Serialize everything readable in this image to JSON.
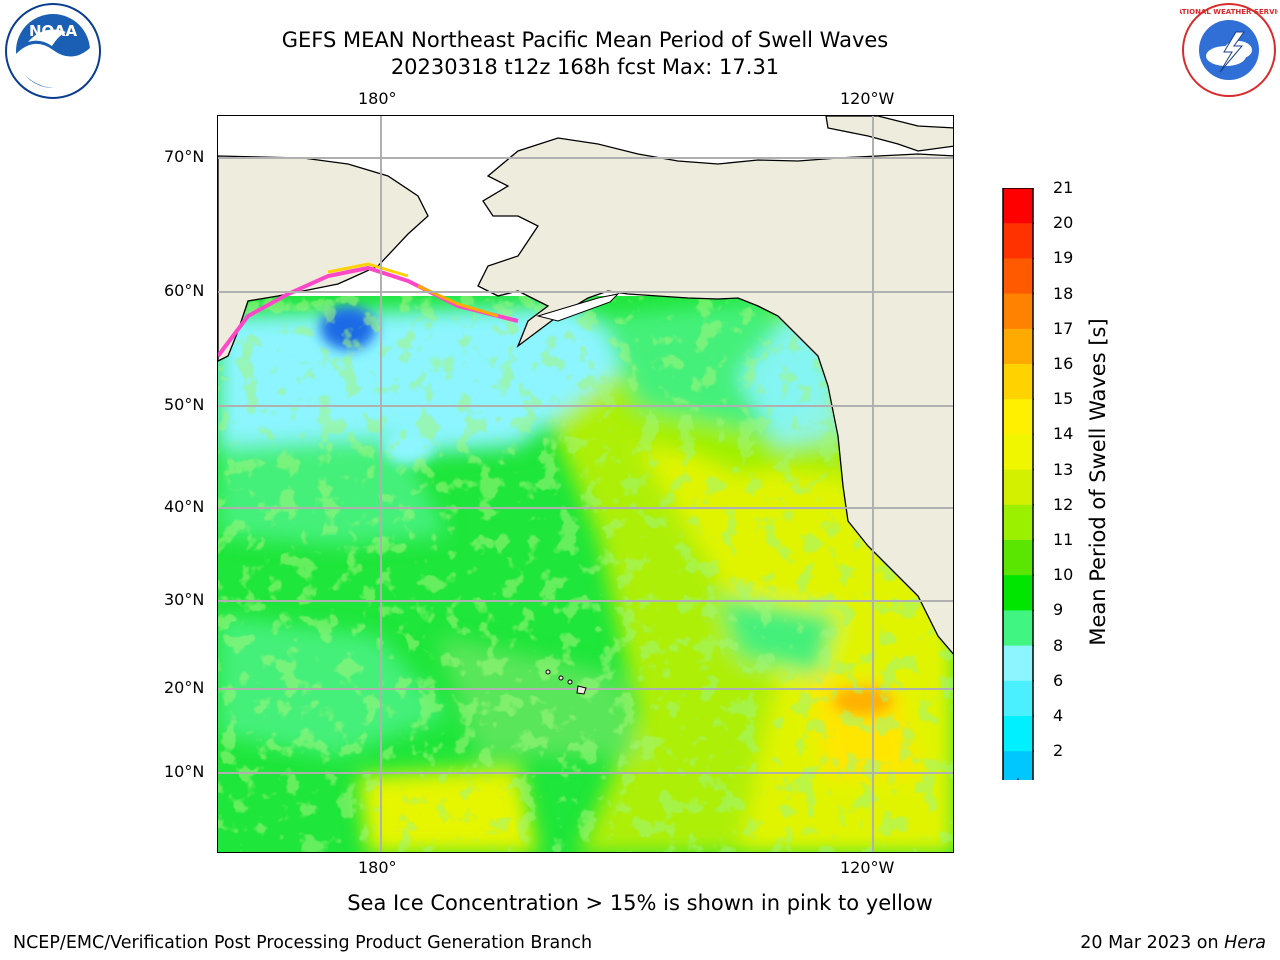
{
  "title": {
    "line1": "GEFS MEAN Northeast Pacific Mean Period of Swell Waves",
    "line2": "20230318 t12z 168h fcst   Max: 17.31"
  },
  "logos": {
    "left": {
      "icon": "noaa-logo-icon",
      "text": "NOAA"
    },
    "right": {
      "icon": "national-weather-service-logo-icon",
      "text": "NATIONAL WEATHER SERVICE"
    }
  },
  "map": {
    "top_lon_ticks": [
      "180°",
      "120°W"
    ],
    "bottom_lon_ticks": [
      "180°",
      "120°W"
    ],
    "lat_ticks": [
      "70°N",
      "60°N",
      "50°N",
      "40°N",
      "30°N",
      "20°N",
      "10°N"
    ],
    "colors": {
      "land": "#eeecdc",
      "grid": "#b0b0b0",
      "coast": "#000000"
    }
  },
  "colorbar": {
    "title": "Mean Period of Swell Waves [s]",
    "levels": [
      "21",
      "20",
      "19",
      "18",
      "17",
      "16",
      "15",
      "14",
      "13",
      "12",
      "11",
      "10",
      "9",
      "8",
      "6",
      "4",
      "2"
    ],
    "colors_top_to_bottom": [
      "#ff0000",
      "#ff3200",
      "#ff5a00",
      "#ff8200",
      "#ffaa00",
      "#ffd200",
      "#fff000",
      "#f0f500",
      "#d2f000",
      "#9bf000",
      "#5ae600",
      "#00e600",
      "#41f582",
      "#8cf5ff",
      "#4af0ff",
      "#00f0ff",
      "#00c8ff",
      "#0066ff"
    ],
    "extend_color": "#0000ff"
  },
  "footnote": "Sea Ice Concentration > 15% is shown in pink to yellow",
  "credit_left": "NCEP/EMC/Verification Post Processing Product Generation Branch",
  "credit_right": {
    "date": "20 Mar 2023",
    "on": " on ",
    "host": "Hera"
  }
}
